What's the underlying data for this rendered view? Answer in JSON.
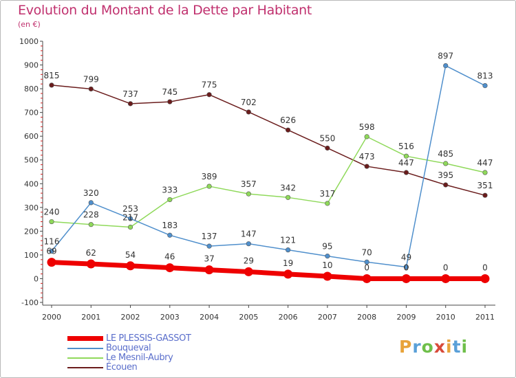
{
  "header": {
    "title": "Evolution du Montant de la Dette par Habitant",
    "unit": "(en €)"
  },
  "logo": {
    "letters": [
      "P",
      "r",
      "o",
      "x",
      "i",
      "t",
      "i"
    ],
    "colors": [
      "#e8a33a",
      "#5aa0d8",
      "#6fbf4a",
      "#d84a3a",
      "#e8a33a",
      "#5aa0d8",
      "#6fbf4a"
    ]
  },
  "chart_data": {
    "type": "line",
    "title": "Evolution du Montant de la Dette par Habitant",
    "ylabel": "(en €)",
    "xlabel": "",
    "x": [
      "2000",
      "2001",
      "2002",
      "2003",
      "2004",
      "2005",
      "2006",
      "2007",
      "2008",
      "2009",
      "2010",
      "2011"
    ],
    "ylim": [
      -100,
      1000
    ],
    "yticks": [
      -100,
      0,
      100,
      200,
      300,
      400,
      500,
      600,
      700,
      800,
      900,
      1000
    ],
    "grid": false,
    "legend_position": "bottom-left",
    "series": [
      {
        "name": "LE PLESSIS-GASSOT",
        "color": "#ee0000",
        "values": [
          69,
          62,
          54,
          46,
          37,
          29,
          19,
          10,
          0,
          0,
          0,
          0
        ],
        "labels": [
          "69",
          "62",
          "54",
          "46",
          "37",
          "29",
          "19",
          "10",
          "0",
          "0",
          "0",
          "0"
        ]
      },
      {
        "name": "Bouqueval",
        "color": "#4f8fcc",
        "values": [
          116,
          320,
          253,
          183,
          137,
          147,
          121,
          95,
          70,
          49,
          897,
          813
        ],
        "labels": [
          "116",
          "320",
          "253",
          "183",
          "137",
          "147",
          "121",
          "95",
          "70",
          "49",
          "897",
          "813"
        ]
      },
      {
        "name": "Le Mesnil-Aubry",
        "color": "#8fd95a",
        "values": [
          240,
          228,
          217,
          333,
          389,
          357,
          342,
          317,
          598,
          516,
          485,
          447
        ],
        "labels": [
          "240",
          "228",
          "217",
          "333",
          "389",
          "357",
          "342",
          "317",
          "598",
          "516",
          "485",
          "447"
        ]
      },
      {
        "name": "Écouen",
        "color": "#6a1c1c",
        "values": [
          815,
          799,
          737,
          745,
          775,
          702,
          626,
          550,
          473,
          447,
          395,
          351
        ],
        "labels": [
          "815",
          "799",
          "737",
          "745",
          "775",
          "702",
          "626",
          "550",
          "473",
          "447",
          "395",
          "351"
        ]
      }
    ]
  }
}
